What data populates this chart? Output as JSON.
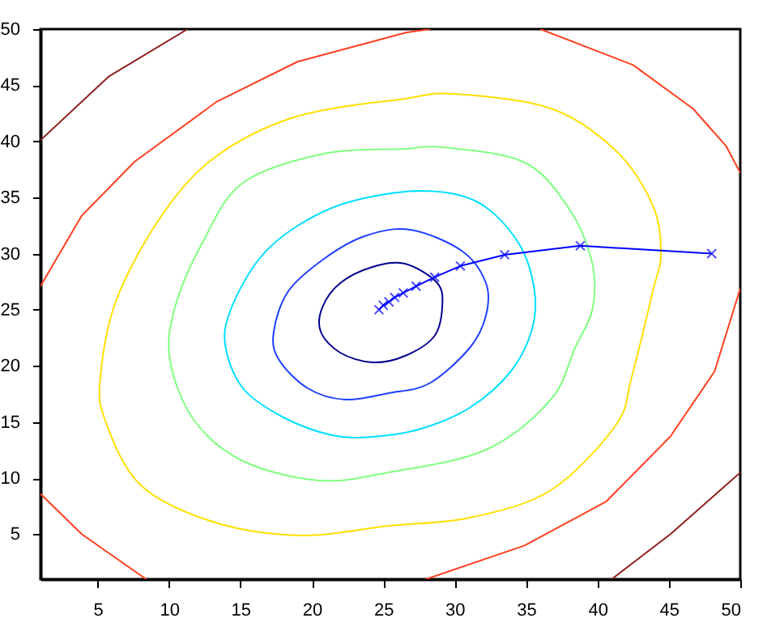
{
  "chart_data": {
    "type": "line",
    "xlim": [
      1,
      50
    ],
    "ylim": [
      1,
      50
    ],
    "xticks": [
      5,
      10,
      15,
      20,
      25,
      30,
      35,
      40,
      45,
      50
    ],
    "yticks": [
      5,
      10,
      15,
      20,
      25,
      30,
      35,
      40,
      45,
      50
    ],
    "grid": false,
    "marker": "none",
    "line_style": "solid",
    "series": [
      {
        "color": "#ff3f1f",
        "x": [
          1.0,
          3.9,
          7.6,
          13.3,
          19.0,
          26.6,
          28.3
        ],
        "values": [
          27.1,
          33.4,
          38.2,
          43.5,
          47.1,
          49.7,
          50
        ]
      },
      {
        "color": "#ff3f1f",
        "x": [
          36.0,
          42.5,
          46.7,
          49.0,
          50
        ],
        "values": [
          50,
          46.8,
          42.9,
          39.6,
          37.2
        ]
      },
      {
        "color": "#ff3f1f",
        "x": [
          28.0,
          34.9,
          40.6,
          45.1,
          48.2,
          50
        ],
        "values": [
          1,
          4.0,
          7.9,
          13.7,
          19.5,
          26.9
        ]
      },
      {
        "color": "#ff3f1f",
        "x": [
          1.0,
          3.9,
          8.4
        ],
        "values": [
          8.6,
          5.0,
          1
        ]
      },
      {
        "color": "#8f1f1f",
        "x": [
          1,
          5.8,
          11.3
        ],
        "values": [
          40.1,
          45.8,
          50
        ]
      },
      {
        "color": "#8f1f1f",
        "x": [
          41.0,
          45.1,
          50
        ],
        "values": [
          1,
          5.0,
          10.5
        ]
      },
      {
        "color": "#0000ff",
        "marker": "cross",
        "x": [
          48.0,
          38.8,
          33.5,
          30.4,
          28.6,
          27.3,
          26.4,
          25.8,
          25.4,
          25.0,
          24.7
        ],
        "values": [
          30.0,
          30.7,
          29.9,
          28.9,
          27.9,
          27.1,
          26.5,
          26.1,
          25.7,
          25.4,
          25.0
        ]
      }
    ]
  }
}
